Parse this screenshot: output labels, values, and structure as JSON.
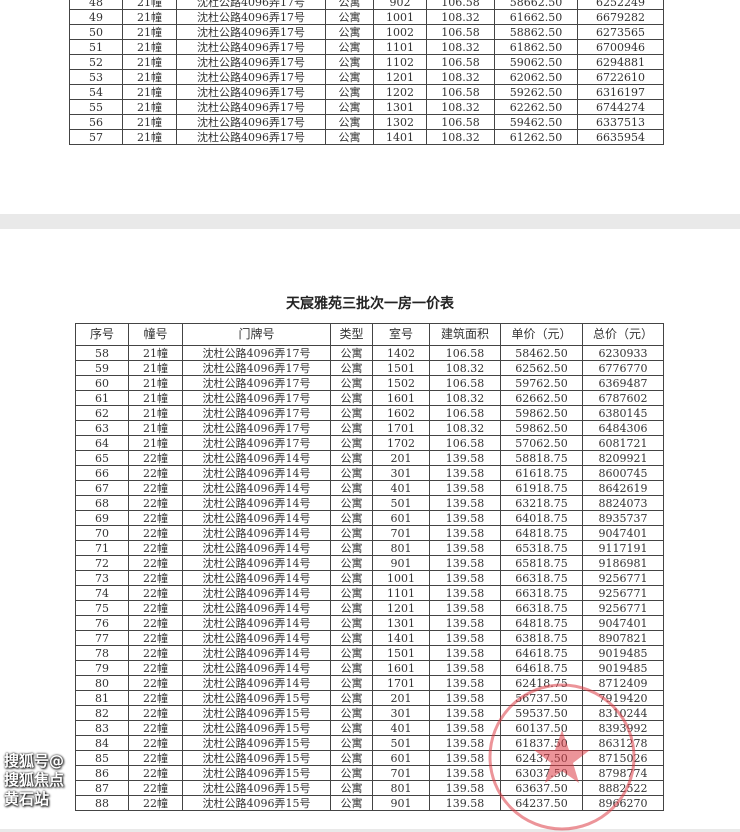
{
  "page1": {
    "rows": [
      [
        "48",
        "21幢",
        "沈杜公路4096弄17号",
        "公寓",
        "902",
        "106.58",
        "58662.50",
        "6252249"
      ],
      [
        "49",
        "21幢",
        "沈杜公路4096弄17号",
        "公寓",
        "1001",
        "108.32",
        "61662.50",
        "6679282"
      ],
      [
        "50",
        "21幢",
        "沈杜公路4096弄17号",
        "公寓",
        "1002",
        "106.58",
        "58862.50",
        "6273565"
      ],
      [
        "51",
        "21幢",
        "沈杜公路4096弄17号",
        "公寓",
        "1101",
        "108.32",
        "61862.50",
        "6700946"
      ],
      [
        "52",
        "21幢",
        "沈杜公路4096弄17号",
        "公寓",
        "1102",
        "106.58",
        "59062.50",
        "6294881"
      ],
      [
        "53",
        "21幢",
        "沈杜公路4096弄17号",
        "公寓",
        "1201",
        "108.32",
        "62062.50",
        "6722610"
      ],
      [
        "54",
        "21幢",
        "沈杜公路4096弄17号",
        "公寓",
        "1202",
        "106.58",
        "59262.50",
        "6316197"
      ],
      [
        "55",
        "21幢",
        "沈杜公路4096弄17号",
        "公寓",
        "1301",
        "108.32",
        "62262.50",
        "6744274"
      ],
      [
        "56",
        "21幢",
        "沈杜公路4096弄17号",
        "公寓",
        "1302",
        "106.58",
        "59462.50",
        "6337513"
      ],
      [
        "57",
        "21幢",
        "沈杜公路4096弄17号",
        "公寓",
        "1401",
        "108.32",
        "61262.50",
        "6635954"
      ]
    ]
  },
  "page2": {
    "title": "天宸雅苑三批次一房一价表",
    "headers": [
      "序号",
      "幢号",
      "门牌号",
      "类型",
      "室号",
      "建筑面积",
      "单价（元）",
      "总价（元）"
    ],
    "rows": [
      [
        "58",
        "21幢",
        "沈杜公路4096弄17号",
        "公寓",
        "1402",
        "106.58",
        "58462.50",
        "6230933"
      ],
      [
        "59",
        "21幢",
        "沈杜公路4096弄17号",
        "公寓",
        "1501",
        "108.32",
        "62562.50",
        "6776770"
      ],
      [
        "60",
        "21幢",
        "沈杜公路4096弄17号",
        "公寓",
        "1502",
        "106.58",
        "59762.50",
        "6369487"
      ],
      [
        "61",
        "21幢",
        "沈杜公路4096弄17号",
        "公寓",
        "1601",
        "108.32",
        "62662.50",
        "6787602"
      ],
      [
        "62",
        "21幢",
        "沈杜公路4096弄17号",
        "公寓",
        "1602",
        "106.58",
        "59862.50",
        "6380145"
      ],
      [
        "63",
        "21幢",
        "沈杜公路4096弄17号",
        "公寓",
        "1701",
        "108.32",
        "59862.50",
        "6484306"
      ],
      [
        "64",
        "21幢",
        "沈杜公路4096弄17号",
        "公寓",
        "1702",
        "106.58",
        "57062.50",
        "6081721"
      ],
      [
        "65",
        "22幢",
        "沈杜公路4096弄14号",
        "公寓",
        "201",
        "139.58",
        "58818.75",
        "8209921"
      ],
      [
        "66",
        "22幢",
        "沈杜公路4096弄14号",
        "公寓",
        "301",
        "139.58",
        "61618.75",
        "8600745"
      ],
      [
        "67",
        "22幢",
        "沈杜公路4096弄14号",
        "公寓",
        "401",
        "139.58",
        "61918.75",
        "8642619"
      ],
      [
        "68",
        "22幢",
        "沈杜公路4096弄14号",
        "公寓",
        "501",
        "139.58",
        "63218.75",
        "8824073"
      ],
      [
        "69",
        "22幢",
        "沈杜公路4096弄14号",
        "公寓",
        "601",
        "139.58",
        "64018.75",
        "8935737"
      ],
      [
        "70",
        "22幢",
        "沈杜公路4096弄14号",
        "公寓",
        "701",
        "139.58",
        "64818.75",
        "9047401"
      ],
      [
        "71",
        "22幢",
        "沈杜公路4096弄14号",
        "公寓",
        "801",
        "139.58",
        "65318.75",
        "9117191"
      ],
      [
        "72",
        "22幢",
        "沈杜公路4096弄14号",
        "公寓",
        "901",
        "139.58",
        "65818.75",
        "9186981"
      ],
      [
        "73",
        "22幢",
        "沈杜公路4096弄14号",
        "公寓",
        "1001",
        "139.58",
        "66318.75",
        "9256771"
      ],
      [
        "74",
        "22幢",
        "沈杜公路4096弄14号",
        "公寓",
        "1101",
        "139.58",
        "66318.75",
        "9256771"
      ],
      [
        "75",
        "22幢",
        "沈杜公路4096弄14号",
        "公寓",
        "1201",
        "139.58",
        "66318.75",
        "9256771"
      ],
      [
        "76",
        "22幢",
        "沈杜公路4096弄14号",
        "公寓",
        "1301",
        "139.58",
        "64818.75",
        "9047401"
      ],
      [
        "77",
        "22幢",
        "沈杜公路4096弄14号",
        "公寓",
        "1401",
        "139.58",
        "63818.75",
        "8907821"
      ],
      [
        "78",
        "22幢",
        "沈杜公路4096弄14号",
        "公寓",
        "1501",
        "139.58",
        "64618.75",
        "9019485"
      ],
      [
        "79",
        "22幢",
        "沈杜公路4096弄14号",
        "公寓",
        "1601",
        "139.58",
        "64618.75",
        "9019485"
      ],
      [
        "80",
        "22幢",
        "沈杜公路4096弄14号",
        "公寓",
        "1701",
        "139.58",
        "62418.75",
        "8712409"
      ],
      [
        "81",
        "22幢",
        "沈杜公路4096弄15号",
        "公寓",
        "201",
        "139.58",
        "56737.50",
        "7919420"
      ],
      [
        "82",
        "22幢",
        "沈杜公路4096弄15号",
        "公寓",
        "301",
        "139.58",
        "59537.50",
        "8310244"
      ],
      [
        "83",
        "22幢",
        "沈杜公路4096弄15号",
        "公寓",
        "401",
        "139.58",
        "60137.50",
        "8393992"
      ],
      [
        "84",
        "22幢",
        "沈杜公路4096弄15号",
        "公寓",
        "501",
        "139.58",
        "61837.50",
        "8631278"
      ],
      [
        "85",
        "22幢",
        "沈杜公路4096弄15号",
        "公寓",
        "601",
        "139.58",
        "62437.50",
        "8715026"
      ],
      [
        "86",
        "22幢",
        "沈杜公路4096弄15号",
        "公寓",
        "701",
        "139.58",
        "63037.50",
        "8798774"
      ],
      [
        "87",
        "22幢",
        "沈杜公路4096弄15号",
        "公寓",
        "801",
        "139.58",
        "63637.50",
        "8882522"
      ],
      [
        "88",
        "22幢",
        "沈杜公路4096弄15号",
        "公寓",
        "901",
        "139.58",
        "64237.50",
        "8966270"
      ]
    ]
  },
  "stamp_color": "#dc3c46",
  "watermark": "搜狐号@搜狐焦点黄石站"
}
